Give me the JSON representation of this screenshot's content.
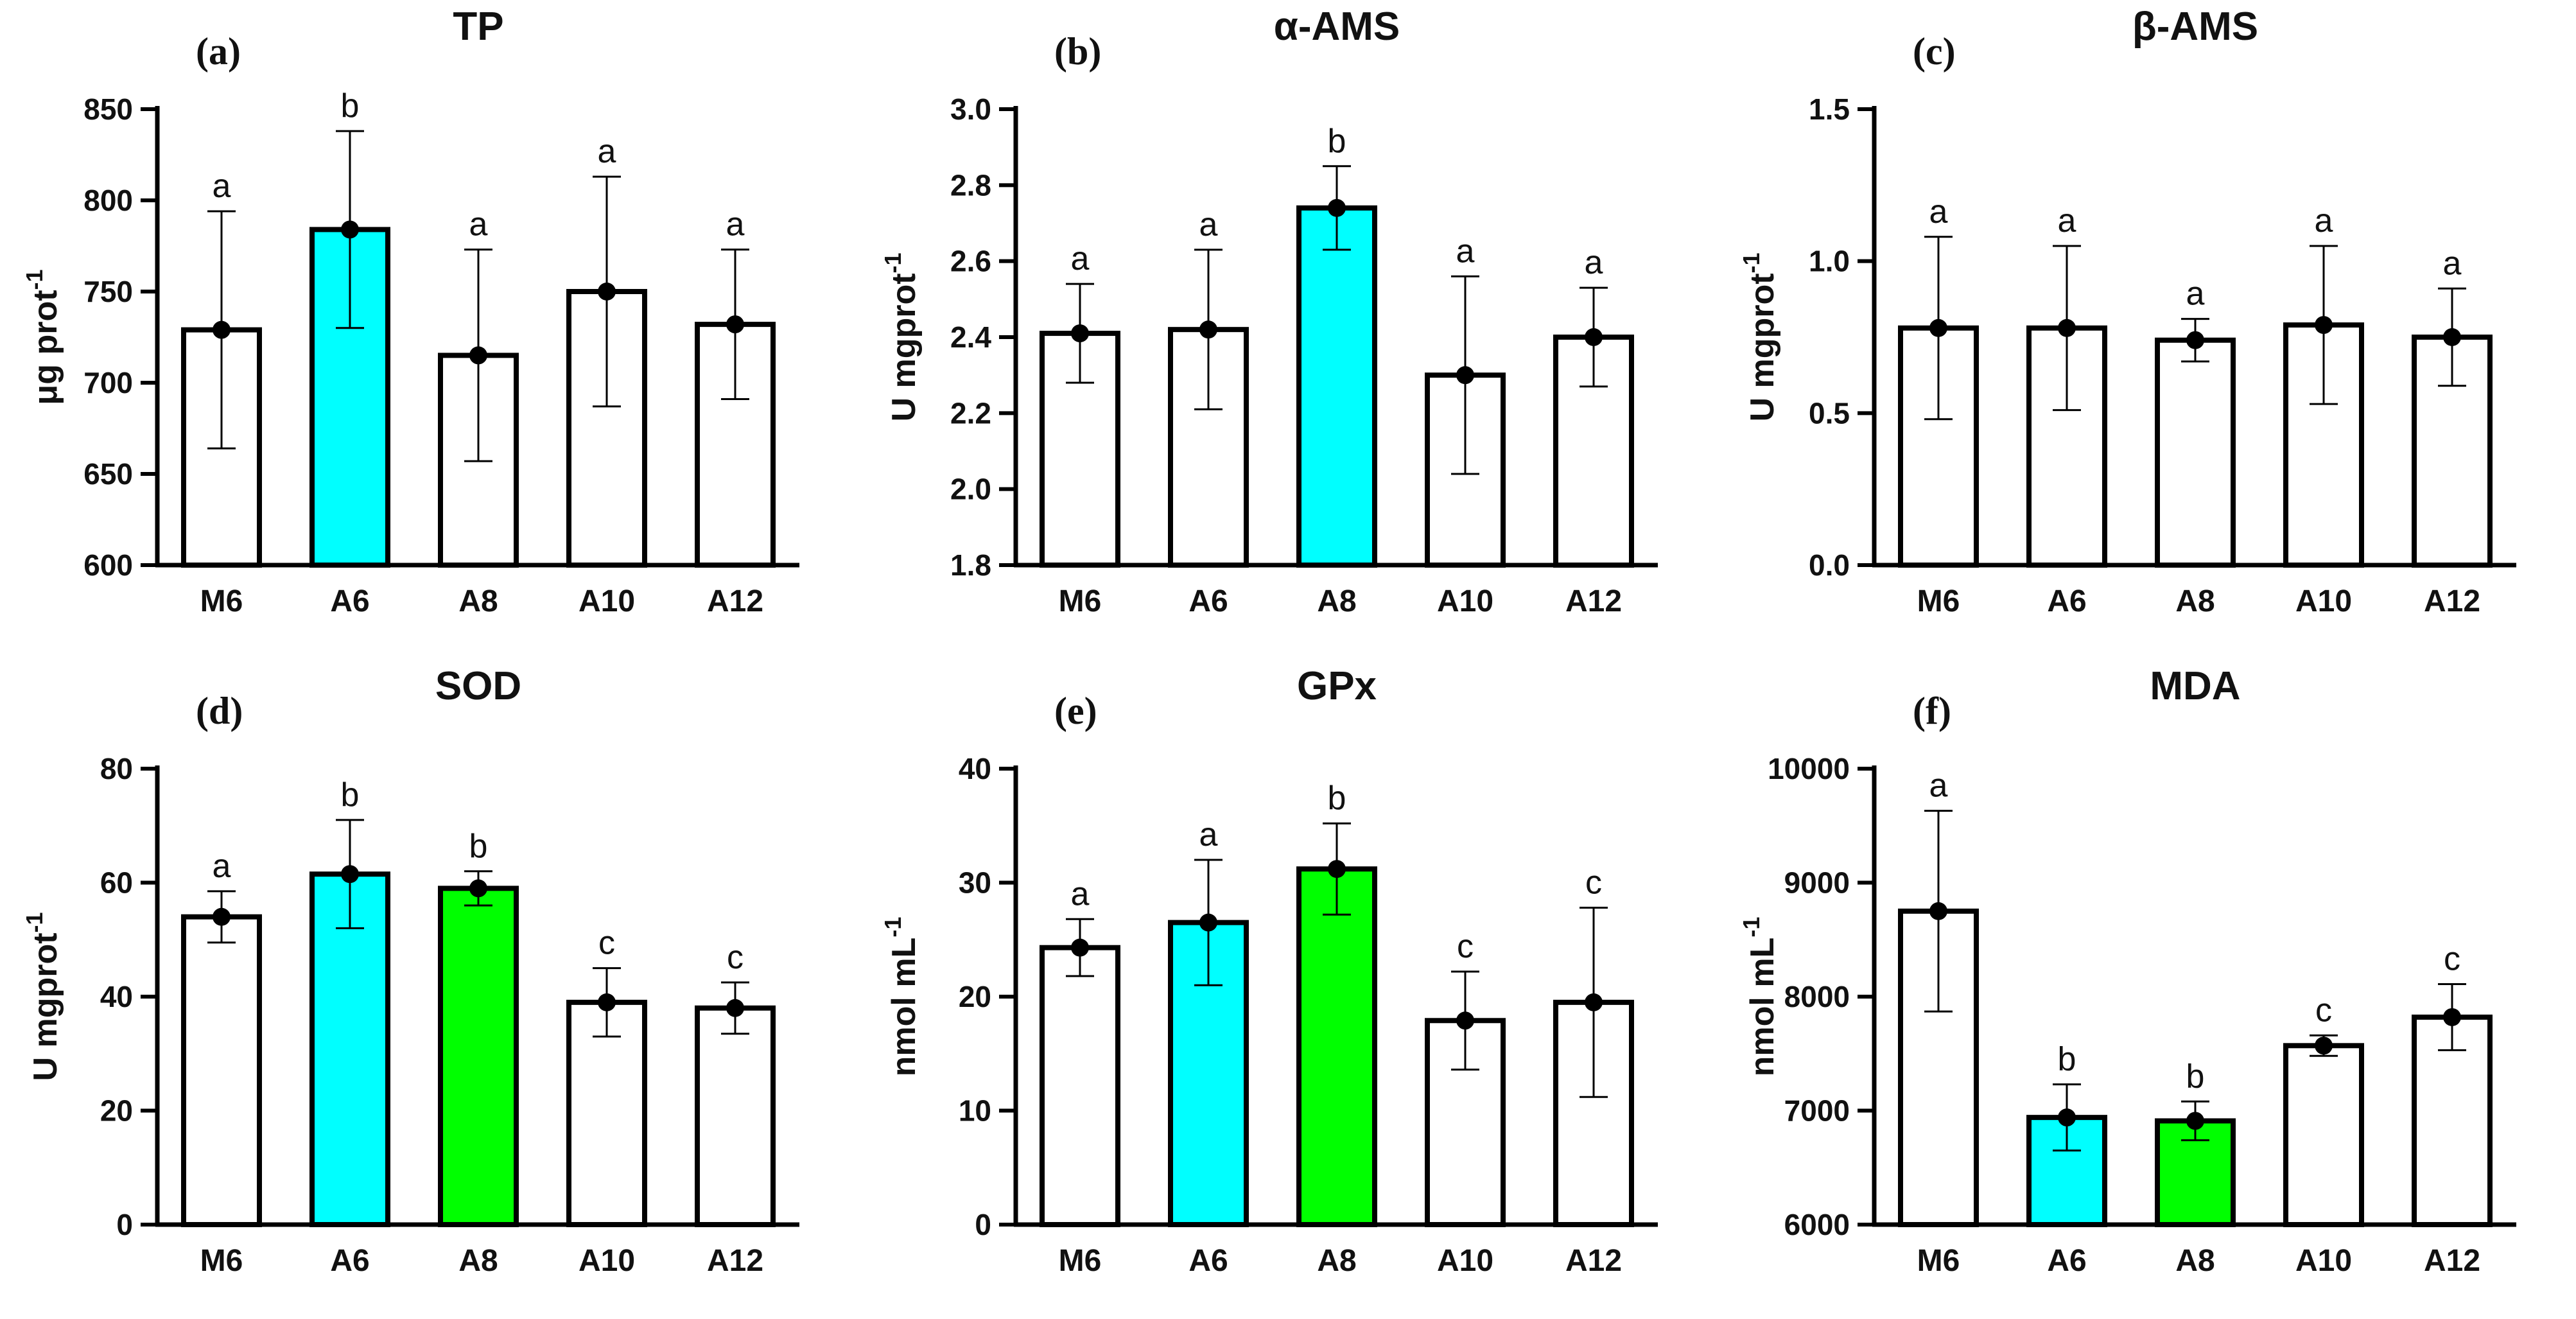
{
  "colors": {
    "white": "#ffffff",
    "cyan": "#00ffff",
    "green": "#00ff00",
    "ink": "#000000"
  },
  "chart_data": [
    {
      "type": "bar",
      "panel": "(a)",
      "title": "TP",
      "ylabel": "μg prot",
      "ylabel_sup": "-1",
      "categories": [
        "M6",
        "A6",
        "A8",
        "A10",
        "A12"
      ],
      "values": [
        729,
        784,
        715,
        750,
        732
      ],
      "error": [
        65,
        54,
        58,
        63,
        41
      ],
      "letters": [
        "a",
        "b",
        "a",
        "a",
        "a"
      ],
      "fills": [
        "white",
        "cyan",
        "white",
        "white",
        "white"
      ],
      "ylim": [
        600,
        850
      ],
      "yticks": [
        "600",
        "650",
        "700",
        "750",
        "800",
        "850"
      ]
    },
    {
      "type": "bar",
      "panel": "(b)",
      "title": "α-AMS",
      "ylabel": "U mgprot",
      "ylabel_sup": "-1",
      "categories": [
        "M6",
        "A6",
        "A8",
        "A10",
        "A12"
      ],
      "values": [
        2.41,
        2.42,
        2.74,
        2.3,
        2.4
      ],
      "error": [
        0.13,
        0.21,
        0.11,
        0.26,
        0.13
      ],
      "letters": [
        "a",
        "a",
        "b",
        "a",
        "a"
      ],
      "fills": [
        "white",
        "white",
        "cyan",
        "white",
        "white"
      ],
      "ylim": [
        1.8,
        3.0
      ],
      "yticks": [
        "1.8",
        "2.0",
        "2.2",
        "2.4",
        "2.6",
        "2.8",
        "3.0"
      ]
    },
    {
      "type": "bar",
      "panel": "(c)",
      "title": "β-AMS",
      "ylabel": "U mgprot",
      "ylabel_sup": "-1",
      "categories": [
        "M6",
        "A6",
        "A8",
        "A10",
        "A12"
      ],
      "values": [
        0.78,
        0.78,
        0.74,
        0.79,
        0.75
      ],
      "error": [
        0.3,
        0.27,
        0.07,
        0.26,
        0.16
      ],
      "letters": [
        "a",
        "a",
        "a",
        "a",
        "a"
      ],
      "fills": [
        "white",
        "white",
        "white",
        "white",
        "white"
      ],
      "ylim": [
        0,
        1.5
      ],
      "yticks": [
        "0.0",
        "0.5",
        "1.0",
        "1.5"
      ]
    },
    {
      "type": "bar",
      "panel": "(d)",
      "title": "SOD",
      "ylabel": "U mgprot",
      "ylabel_sup": "-1",
      "categories": [
        "M6",
        "A6",
        "A8",
        "A10",
        "A12"
      ],
      "values": [
        54,
        61.5,
        59,
        39,
        38
      ],
      "error": [
        4.5,
        9.5,
        3,
        6,
        4.5
      ],
      "letters": [
        "a",
        "b",
        "b",
        "c",
        "c"
      ],
      "fills": [
        "white",
        "cyan",
        "green",
        "white",
        "white"
      ],
      "ylim": [
        0,
        80
      ],
      "yticks": [
        "0",
        "20",
        "40",
        "60",
        "80"
      ]
    },
    {
      "type": "bar",
      "panel": "(e)",
      "title": "GPx",
      "ylabel": "nmol mL",
      "ylabel_sup": "-1",
      "categories": [
        "M6",
        "A6",
        "A8",
        "A10",
        "A12"
      ],
      "values": [
        24.3,
        26.5,
        31.2,
        17.9,
        19.5
      ],
      "error": [
        2.5,
        5.5,
        4,
        4.3,
        8.3
      ],
      "letters": [
        "a",
        "a",
        "b",
        "c",
        "c"
      ],
      "fills": [
        "white",
        "cyan",
        "green",
        "white",
        "white"
      ],
      "ylim": [
        0,
        40
      ],
      "yticks": [
        "0",
        "10",
        "20",
        "30",
        "40"
      ]
    },
    {
      "type": "bar",
      "panel": "(f)",
      "title": "MDA",
      "ylabel": "nmol mL",
      "ylabel_sup": "-1",
      "categories": [
        "M6",
        "A6",
        "A8",
        "A10",
        "A12"
      ],
      "values": [
        8750,
        6940,
        6910,
        7570,
        7820
      ],
      "error": [
        880,
        290,
        170,
        90,
        290
      ],
      "letters": [
        "a",
        "b",
        "b",
        "c",
        "c"
      ],
      "fills": [
        "white",
        "cyan",
        "green",
        "white",
        "white"
      ],
      "ylim": [
        6000,
        10000
      ],
      "yticks": [
        "6000",
        "7000",
        "8000",
        "9000",
        "10000"
      ]
    }
  ]
}
